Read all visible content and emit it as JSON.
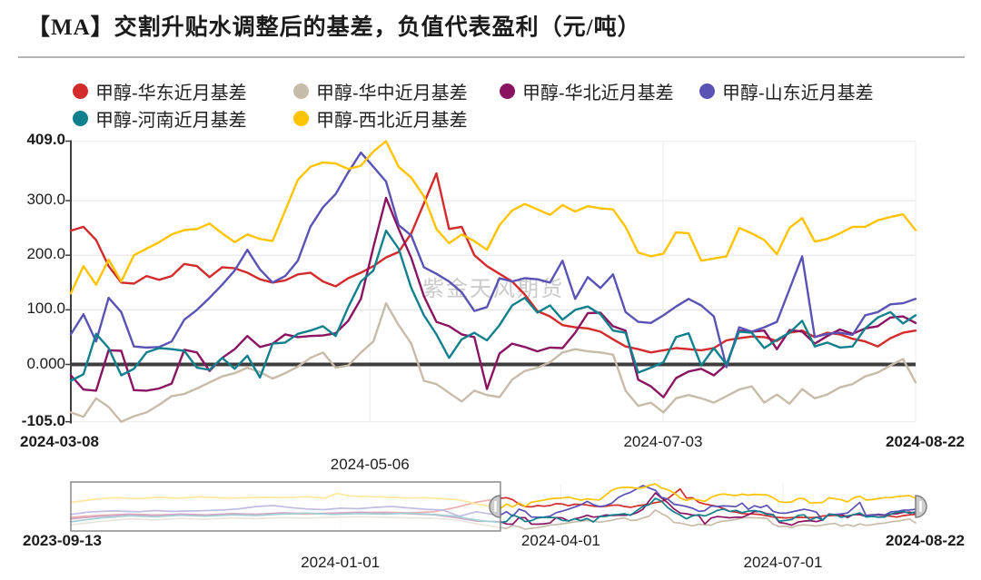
{
  "header": {
    "title": "【MA】交割升贴水调整后的基差，负值代表盈利（元/吨）"
  },
  "watermark": {
    "text": "紫金天风期货"
  },
  "styles": {
    "grid_color": "#e6e6e6",
    "grid_color_light": "#efefef",
    "axis_color": "#3d3d3d",
    "zero_line_color": "#3d3d3d",
    "label_color": "#1c1c1c",
    "nav_border": "#8a8a8a",
    "nav_overlay": "#ffffff",
    "handle_fill": "#cdcdcd",
    "handle_stroke": "#7f7f7f",
    "watermark_color": "#cbcbcb"
  },
  "legend": {
    "items": [
      {
        "id": "huadong",
        "label": "甲醇-华东近月基差",
        "color": "#d32b2b"
      },
      {
        "id": "huazhong",
        "label": "甲醇-华中近月基差",
        "color": "#c7bcaa"
      },
      {
        "id": "huabei",
        "label": "甲醇-华北近月基差",
        "color": "#8a1462"
      },
      {
        "id": "shandong",
        "label": "甲醇-山东近月基差",
        "color": "#5a52b5"
      },
      {
        "id": "henan",
        "label": "甲醇-河南近月基差",
        "color": "#11808e"
      },
      {
        "id": "xibei",
        "label": "甲醇-西北近月基差",
        "color": "#ffc300"
      }
    ]
  },
  "chart_data": {
    "type": "line",
    "title": "【MA】交割升贴水调整后的基差，负值代表盈利（元/吨）",
    "unit": "元/吨",
    "note": "负值代表盈利",
    "x_range": [
      "2024-03-08",
      "2024-08-22"
    ],
    "ylim": [
      -105,
      409
    ],
    "grid": true,
    "zero_line": 0,
    "legend_position": "top",
    "y_ticks": [
      {
        "label": "409.0",
        "value": 409,
        "bold": true
      },
      {
        "label": "300.0",
        "value": 300,
        "bold": false
      },
      {
        "label": "200.0",
        "value": 200,
        "bold": false
      },
      {
        "label": "100.0",
        "value": 100,
        "bold": false
      },
      {
        "label": "0.000",
        "value": 0,
        "bold": false
      },
      {
        "label": "-105.0",
        "value": -105,
        "bold": true
      }
    ],
    "x_ticks": [
      {
        "label": "2024-03-08",
        "t": 0.0,
        "row": 1,
        "bold": true,
        "align": "left"
      },
      {
        "label": "2024-05-06",
        "t": 0.354,
        "row": 2,
        "bold": false,
        "align": "center"
      },
      {
        "label": "2024-07-03",
        "t": 0.701,
        "row": 1,
        "bold": false,
        "align": "center"
      },
      {
        "label": "2024-08-22",
        "t": 1.0,
        "row": 1,
        "bold": true,
        "align": "right"
      }
    ],
    "series": [
      {
        "name": "甲醇-华东近月基差",
        "color": "#d32b2b",
        "values": [
          245,
          252,
          228,
          180,
          150,
          148,
          162,
          155,
          162,
          184,
          180,
          160,
          178,
          176,
          168,
          156,
          150,
          154,
          165,
          168,
          152,
          143,
          158,
          168,
          180,
          196,
          206,
          240,
          295,
          350,
          248,
          252,
          200,
          180,
          166,
          152,
          128,
          98,
          88,
          72,
          68,
          66,
          60,
          46,
          33,
          28,
          22,
          26,
          30,
          28,
          26,
          30,
          44,
          48,
          51,
          50,
          43,
          58,
          62,
          50,
          58,
          55,
          47,
          42,
          33,
          48,
          58,
          62
        ]
      },
      {
        "name": "甲醇-华中近月基差",
        "color": "#c7bcaa",
        "values": [
          -88,
          -96,
          -62,
          -78,
          -105,
          -95,
          -88,
          -74,
          -58,
          -54,
          -44,
          -33,
          -22,
          -16,
          -6,
          -14,
          -26,
          -16,
          -4,
          12,
          22,
          -6,
          -2,
          22,
          42,
          112,
          72,
          38,
          -30,
          -36,
          -52,
          -68,
          -48,
          -56,
          -60,
          -28,
          -12,
          -6,
          4,
          22,
          28,
          24,
          22,
          18,
          -48,
          -76,
          -70,
          -88,
          -62,
          -56,
          -62,
          -70,
          -58,
          -46,
          -40,
          -70,
          -55,
          -72,
          -45,
          -62,
          -55,
          -42,
          -36,
          -22,
          -15,
          -2,
          10,
          -33
        ]
      },
      {
        "name": "甲醇-华北近月基差",
        "color": "#8a1462",
        "values": [
          -20,
          -46,
          -48,
          26,
          25,
          -47,
          -48,
          -44,
          -35,
          27,
          22,
          -12,
          12,
          28,
          52,
          32,
          38,
          55,
          50,
          52,
          53,
          57,
          80,
          120,
          215,
          305,
          248,
          195,
          125,
          78,
          70,
          55,
          50,
          -45,
          20,
          38,
          32,
          24,
          31,
          30,
          58,
          94,
          95,
          70,
          62,
          -28,
          -40,
          -60,
          -25,
          -13,
          -8,
          -20,
          0,
          62,
          60,
          62,
          28,
          63,
          60,
          38,
          52,
          64,
          56,
          66,
          70,
          86,
          88,
          76
        ]
      },
      {
        "name": "甲醇-山东近月基差",
        "color": "#5a52b5",
        "values": [
          55,
          92,
          42,
          122,
          96,
          33,
          31,
          32,
          42,
          82,
          100,
          122,
          146,
          172,
          210,
          174,
          150,
          162,
          190,
          252,
          288,
          312,
          352,
          388,
          362,
          335,
          255,
          236,
          178,
          166,
          152,
          132,
          98,
          105,
          158,
          152,
          158,
          156,
          150,
          190,
          120,
          160,
          140,
          165,
          96,
          78,
          76,
          90,
          106,
          120,
          108,
          88,
          -5,
          68,
          60,
          68,
          78,
          138,
          198,
          50,
          56,
          58,
          54,
          90,
          96,
          110,
          112,
          120
        ]
      },
      {
        "name": "甲醇-河南近月基差",
        "color": "#11808e",
        "values": [
          -30,
          -18,
          56,
          30,
          -20,
          -8,
          22,
          30,
          28,
          25,
          -6,
          -10,
          12,
          -8,
          16,
          -24,
          38,
          40,
          56,
          62,
          70,
          52,
          105,
          152,
          172,
          245,
          212,
          140,
          90,
          55,
          12,
          46,
          58,
          44,
          72,
          108,
          122,
          95,
          108,
          82,
          100,
          106,
          92,
          62,
          58,
          -15,
          -6,
          4,
          50,
          57,
          -2,
          30,
          0,
          60,
          58,
          30,
          45,
          58,
          80,
          33,
          40,
          31,
          33,
          66,
          86,
          96,
          75,
          90
        ]
      },
      {
        "name": "甲醇-西北近月基差",
        "color": "#ffc300",
        "values": [
          130,
          180,
          146,
          192,
          152,
          200,
          212,
          224,
          238,
          246,
          248,
          258,
          240,
          224,
          238,
          230,
          226,
          282,
          338,
          362,
          370,
          368,
          358,
          364,
          390,
          409,
          362,
          342,
          308,
          248,
          222,
          238,
          226,
          210,
          255,
          282,
          294,
          284,
          274,
          292,
          280,
          290,
          286,
          284,
          252,
          205,
          198,
          203,
          242,
          240,
          190,
          194,
          198,
          250,
          240,
          228,
          202,
          250,
          268,
          225,
          230,
          240,
          252,
          252,
          264,
          270,
          275,
          246
        ]
      }
    ]
  },
  "navigator": {
    "x_range": [
      "2023-09-13",
      "2024-08-22"
    ],
    "window": {
      "start": "2024-03-08",
      "end": "2024-08-22",
      "start_t": 0.5085,
      "end_t": 1.0
    },
    "x_ticks": [
      {
        "label": "2023-09-13",
        "t": 0.0,
        "row": 1,
        "bold": true,
        "align": "left"
      },
      {
        "label": "2024-01-01",
        "t": 0.319,
        "row": 2,
        "bold": false,
        "align": "center"
      },
      {
        "label": "2024-04-01",
        "t": 0.58,
        "row": 1,
        "bold": false,
        "align": "center"
      },
      {
        "label": "2024-07-01",
        "t": 0.843,
        "row": 2,
        "bold": false,
        "align": "center"
      },
      {
        "label": "2024-08-22",
        "t": 1.0,
        "row": 1,
        "bold": true,
        "align": "right"
      }
    ],
    "history": {
      "huadong": [
        [
          0,
          30
        ],
        [
          0.035,
          52
        ],
        [
          0.07,
          65
        ],
        [
          0.1,
          55
        ],
        [
          0.13,
          62
        ],
        [
          0.16,
          55
        ],
        [
          0.19,
          66
        ],
        [
          0.22,
          60
        ],
        [
          0.25,
          72
        ],
        [
          0.28,
          66
        ],
        [
          0.31,
          76
        ],
        [
          0.34,
          82
        ],
        [
          0.37,
          86
        ],
        [
          0.4,
          80
        ],
        [
          0.43,
          92
        ],
        [
          0.455,
          140
        ],
        [
          0.48,
          200
        ],
        [
          0.5085,
          245
        ]
      ],
      "huazhong": [
        [
          0,
          -55
        ],
        [
          0.035,
          -18
        ],
        [
          0.07,
          12
        ],
        [
          0.1,
          2
        ],
        [
          0.13,
          16
        ],
        [
          0.16,
          8
        ],
        [
          0.19,
          22
        ],
        [
          0.22,
          14
        ],
        [
          0.25,
          26
        ],
        [
          0.28,
          20
        ],
        [
          0.31,
          30
        ],
        [
          0.34,
          36
        ],
        [
          0.37,
          30
        ],
        [
          0.4,
          24
        ],
        [
          0.43,
          18
        ],
        [
          0.455,
          0
        ],
        [
          0.48,
          -42
        ],
        [
          0.5085,
          -88
        ]
      ],
      "huabei": [
        [
          0,
          12
        ],
        [
          0.035,
          42
        ],
        [
          0.07,
          62
        ],
        [
          0.1,
          50
        ],
        [
          0.13,
          66
        ],
        [
          0.16,
          56
        ],
        [
          0.19,
          72
        ],
        [
          0.22,
          64
        ],
        [
          0.25,
          80
        ],
        [
          0.28,
          72
        ],
        [
          0.31,
          76
        ],
        [
          0.34,
          86
        ],
        [
          0.37,
          80
        ],
        [
          0.4,
          70
        ],
        [
          0.43,
          58
        ],
        [
          0.455,
          28
        ],
        [
          0.48,
          -12
        ],
        [
          0.5085,
          -20
        ]
      ],
      "shandong": [
        [
          0,
          62
        ],
        [
          0.02,
          88
        ],
        [
          0.05,
          102
        ],
        [
          0.08,
          92
        ],
        [
          0.1,
          106
        ],
        [
          0.12,
          96
        ],
        [
          0.15,
          102
        ],
        [
          0.18,
          112
        ],
        [
          0.2,
          126
        ],
        [
          0.22,
          152
        ],
        [
          0.24,
          162
        ],
        [
          0.26,
          140
        ],
        [
          0.28,
          122
        ],
        [
          0.3,
          116
        ],
        [
          0.32,
          132
        ],
        [
          0.34,
          126
        ],
        [
          0.36,
          142
        ],
        [
          0.38,
          152
        ],
        [
          0.4,
          136
        ],
        [
          0.42,
          120
        ],
        [
          0.44,
          112
        ],
        [
          0.46,
          42
        ],
        [
          0.48,
          92
        ],
        [
          0.5,
          62
        ],
        [
          0.5085,
          55
        ]
      ],
      "henan": [
        [
          0,
          -22
        ],
        [
          0.035,
          22
        ],
        [
          0.07,
          46
        ],
        [
          0.1,
          36
        ],
        [
          0.13,
          52
        ],
        [
          0.16,
          42
        ],
        [
          0.19,
          56
        ],
        [
          0.22,
          50
        ],
        [
          0.25,
          66
        ],
        [
          0.28,
          76
        ],
        [
          0.31,
          62
        ],
        [
          0.34,
          72
        ],
        [
          0.37,
          66
        ],
        [
          0.4,
          76
        ],
        [
          0.43,
          60
        ],
        [
          0.455,
          42
        ],
        [
          0.48,
          -2
        ],
        [
          0.5085,
          -30
        ]
      ],
      "xibei": [
        [
          0,
          198
        ],
        [
          0.03,
          235
        ],
        [
          0.05,
          252
        ],
        [
          0.08,
          240
        ],
        [
          0.1,
          256
        ],
        [
          0.13,
          246
        ],
        [
          0.15,
          262
        ],
        [
          0.18,
          250
        ],
        [
          0.2,
          248
        ],
        [
          0.23,
          256
        ],
        [
          0.25,
          252
        ],
        [
          0.28,
          262
        ],
        [
          0.3,
          246
        ],
        [
          0.315,
          300
        ],
        [
          0.33,
          272
        ],
        [
          0.36,
          262
        ],
        [
          0.38,
          256
        ],
        [
          0.4,
          248
        ],
        [
          0.42,
          252
        ],
        [
          0.44,
          240
        ],
        [
          0.46,
          226
        ],
        [
          0.48,
          182
        ],
        [
          0.5085,
          130
        ]
      ]
    }
  }
}
